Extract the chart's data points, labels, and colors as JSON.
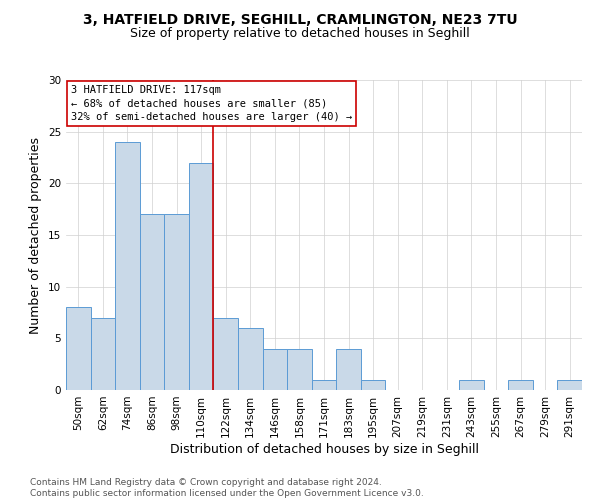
{
  "title_line1": "3, HATFIELD DRIVE, SEGHILL, CRAMLINGTON, NE23 7TU",
  "title_line2": "Size of property relative to detached houses in Seghill",
  "xlabel": "Distribution of detached houses by size in Seghill",
  "ylabel": "Number of detached properties",
  "categories": [
    "50sqm",
    "62sqm",
    "74sqm",
    "86sqm",
    "98sqm",
    "110sqm",
    "122sqm",
    "134sqm",
    "146sqm",
    "158sqm",
    "171sqm",
    "183sqm",
    "195sqm",
    "207sqm",
    "219sqm",
    "231sqm",
    "243sqm",
    "255sqm",
    "267sqm",
    "279sqm",
    "291sqm"
  ],
  "values": [
    8,
    7,
    24,
    17,
    17,
    22,
    7,
    6,
    4,
    4,
    1,
    4,
    1,
    0,
    0,
    0,
    1,
    0,
    1,
    0,
    1
  ],
  "bar_color": "#c9d9e8",
  "bar_edge_color": "#5b9bd5",
  "vline_x": 5.5,
  "vline_color": "#cc0000",
  "annotation_text": "3 HATFIELD DRIVE: 117sqm\n← 68% of detached houses are smaller (85)\n32% of semi-detached houses are larger (40) →",
  "annotation_box_color": "#ffffff",
  "annotation_box_edge_color": "#cc0000",
  "ylim": [
    0,
    30
  ],
  "yticks": [
    0,
    5,
    10,
    15,
    20,
    25,
    30
  ],
  "footer_text": "Contains HM Land Registry data © Crown copyright and database right 2024.\nContains public sector information licensed under the Open Government Licence v3.0.",
  "title_fontsize": 10,
  "subtitle_fontsize": 9,
  "axis_label_fontsize": 9,
  "tick_fontsize": 7.5,
  "annotation_fontsize": 7.5,
  "footer_fontsize": 6.5,
  "grid_color": "#d0d0d0"
}
